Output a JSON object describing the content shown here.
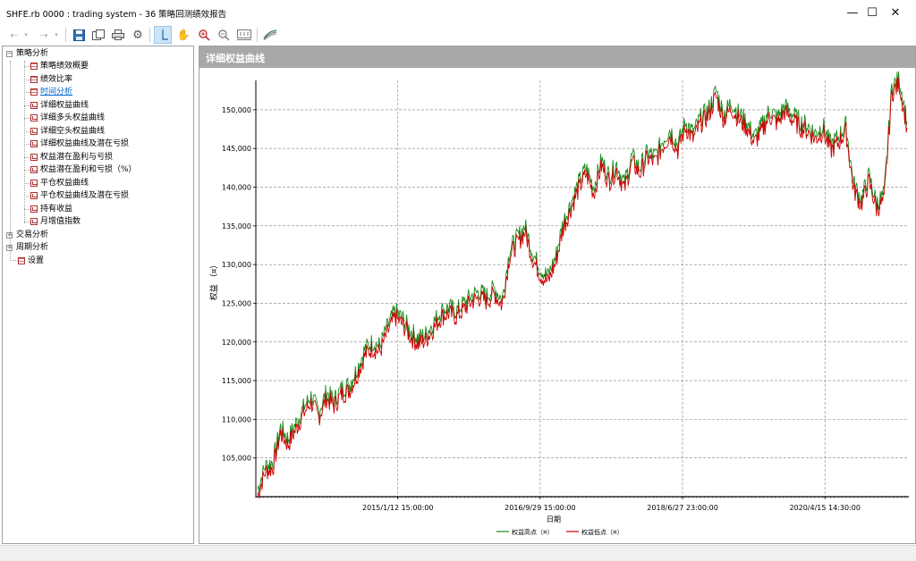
{
  "window": {
    "title": "SHFE.rb 0000 : trading system - 36 策略回测绩效报告",
    "minimize_glyph": "—",
    "maximize_glyph": "☐",
    "close_glyph": "✕"
  },
  "toolbar": {
    "icons": [
      "back-icon",
      "back-dropdown-icon",
      "forward-icon",
      "forward-dropdown-icon",
      "save-icon",
      "export-icon",
      "print-icon",
      "settings-icon",
      "cursor-icon",
      "hand-icon",
      "zoom-in-icon",
      "zoom-out-icon",
      "fit-icon",
      "chart-style-icon"
    ]
  },
  "tree": {
    "strategy": {
      "label": "策略分析",
      "items": [
        {
          "label": "策略绩效概要"
        },
        {
          "label": "绩效比率"
        },
        {
          "label": "时间分析"
        },
        {
          "label": "详细权益曲线"
        },
        {
          "label": "详细多头权益曲线"
        },
        {
          "label": "详细空头权益曲线"
        },
        {
          "label": "详细权益曲线及潜在亏损"
        },
        {
          "label": "权益潜在盈利与亏损"
        },
        {
          "label": "权益潜在盈利和亏损（%）"
        },
        {
          "label": "平仓权益曲线"
        },
        {
          "label": "平仓权益曲线及潜在亏损"
        },
        {
          "label": "持有收益"
        },
        {
          "label": "月增值指数"
        }
      ]
    },
    "trade": {
      "label": "交易分析"
    },
    "period": {
      "label": "周期分析"
    },
    "settings": {
      "label": "设置"
    }
  },
  "panel": {
    "title": "详细权益曲线"
  },
  "colors": {
    "high_series": "#1a8a1a",
    "low_series": "#cc0000",
    "header_bg": "#a8a8a8"
  },
  "chart_data": {
    "type": "line",
    "xlabel": "日期",
    "ylabel": "权益 （¤）",
    "x_tick_labels": [
      "2015/1/12 15:00:00",
      "2016/9/29 15:00:00",
      "2018/6/27 23:00:00",
      "2020/4/15 14:30:00"
    ],
    "y_tick_labels": [
      "105,000",
      "110,000",
      "115,000",
      "120,000",
      "125,000",
      "130,000",
      "135,000",
      "140,000",
      "145,000",
      "150,000"
    ],
    "y_ticks": [
      105000,
      110000,
      115000,
      120000,
      125000,
      130000,
      135000,
      140000,
      145000,
      150000
    ],
    "ylim": [
      100000,
      153800
    ],
    "grid": true,
    "legend_position": "bottom",
    "series": [
      {
        "name": "权益高点（¤）",
        "color": "#1a8a1a"
      },
      {
        "name": "权益低点（¤）",
        "color": "#cc0000"
      }
    ],
    "values": [
      100500,
      103500,
      104000,
      108500,
      107000,
      109000,
      111000,
      112500,
      110500,
      113000,
      112000,
      113500,
      114000,
      116000,
      118500,
      119500,
      119000,
      121500,
      123500,
      122500,
      121000,
      120000,
      120500,
      122000,
      123500,
      124000,
      123500,
      124500,
      125500,
      126000,
      125500,
      126500,
      125000,
      131500,
      133000,
      134500,
      131000,
      129000,
      128000,
      130500,
      135000,
      137500,
      140000,
      142000,
      139500,
      143000,
      141000,
      142500,
      140000,
      143500,
      142000,
      144000,
      143500,
      145500,
      147000,
      145000,
      148000,
      146500,
      148500,
      149500,
      152000,
      149000,
      150500,
      149000,
      148000,
      146000,
      147500,
      149500,
      148500,
      150000,
      149000,
      148000,
      147500,
      146500,
      147500,
      145000,
      146000,
      147500,
      140000,
      138000,
      141000,
      137500,
      138500,
      152500,
      153500,
      148000
    ],
    "v_grid_positions": [
      0.2175,
      0.4355,
      0.6535,
      0.8715
    ]
  }
}
